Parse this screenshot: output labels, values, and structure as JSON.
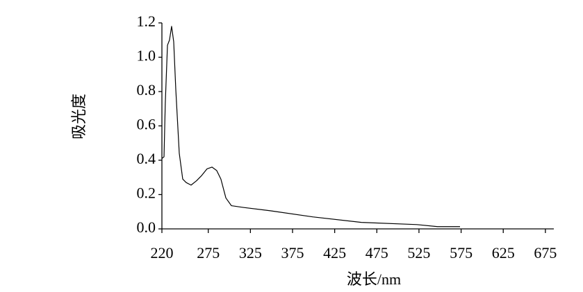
{
  "chart_data": {
    "type": "line",
    "x_label": "波长/nm",
    "y_label": "吸光度",
    "x": [
      220,
      222.5,
      224,
      226.6,
      229,
      231.5,
      234,
      236.5,
      240.6,
      244.7,
      248.8,
      254.6,
      261,
      267,
      273.6,
      279.4,
      285,
      290,
      295.9,
      302.5,
      316.5,
      349.4,
      398.9,
      456.6,
      522.6,
      547,
      573.7
    ],
    "series": [
      {
        "color": "#000000",
        "values": [
          0.41,
          0.42,
          0.73,
          1.07,
          1.1,
          1.18,
          1.09,
          0.81,
          0.44,
          0.29,
          0.27,
          0.255,
          0.28,
          0.31,
          0.35,
          0.36,
          0.34,
          0.29,
          0.18,
          0.135,
          0.125,
          0.105,
          0.07,
          0.038,
          0.025,
          0.013,
          0.013
        ]
      }
    ],
    "xlim": [
      220,
      685
    ],
    "xticks": [
      220,
      275,
      325,
      375,
      425,
      475,
      525,
      575,
      625,
      675
    ],
    "ylim": [
      0,
      1.2
    ],
    "yticks": [
      {
        "value": 0,
        "label": "0.0"
      },
      0.2,
      0.4,
      0.6,
      0.8,
      {
        "value": 1,
        "label": "1.0"
      },
      1.2
    ]
  }
}
